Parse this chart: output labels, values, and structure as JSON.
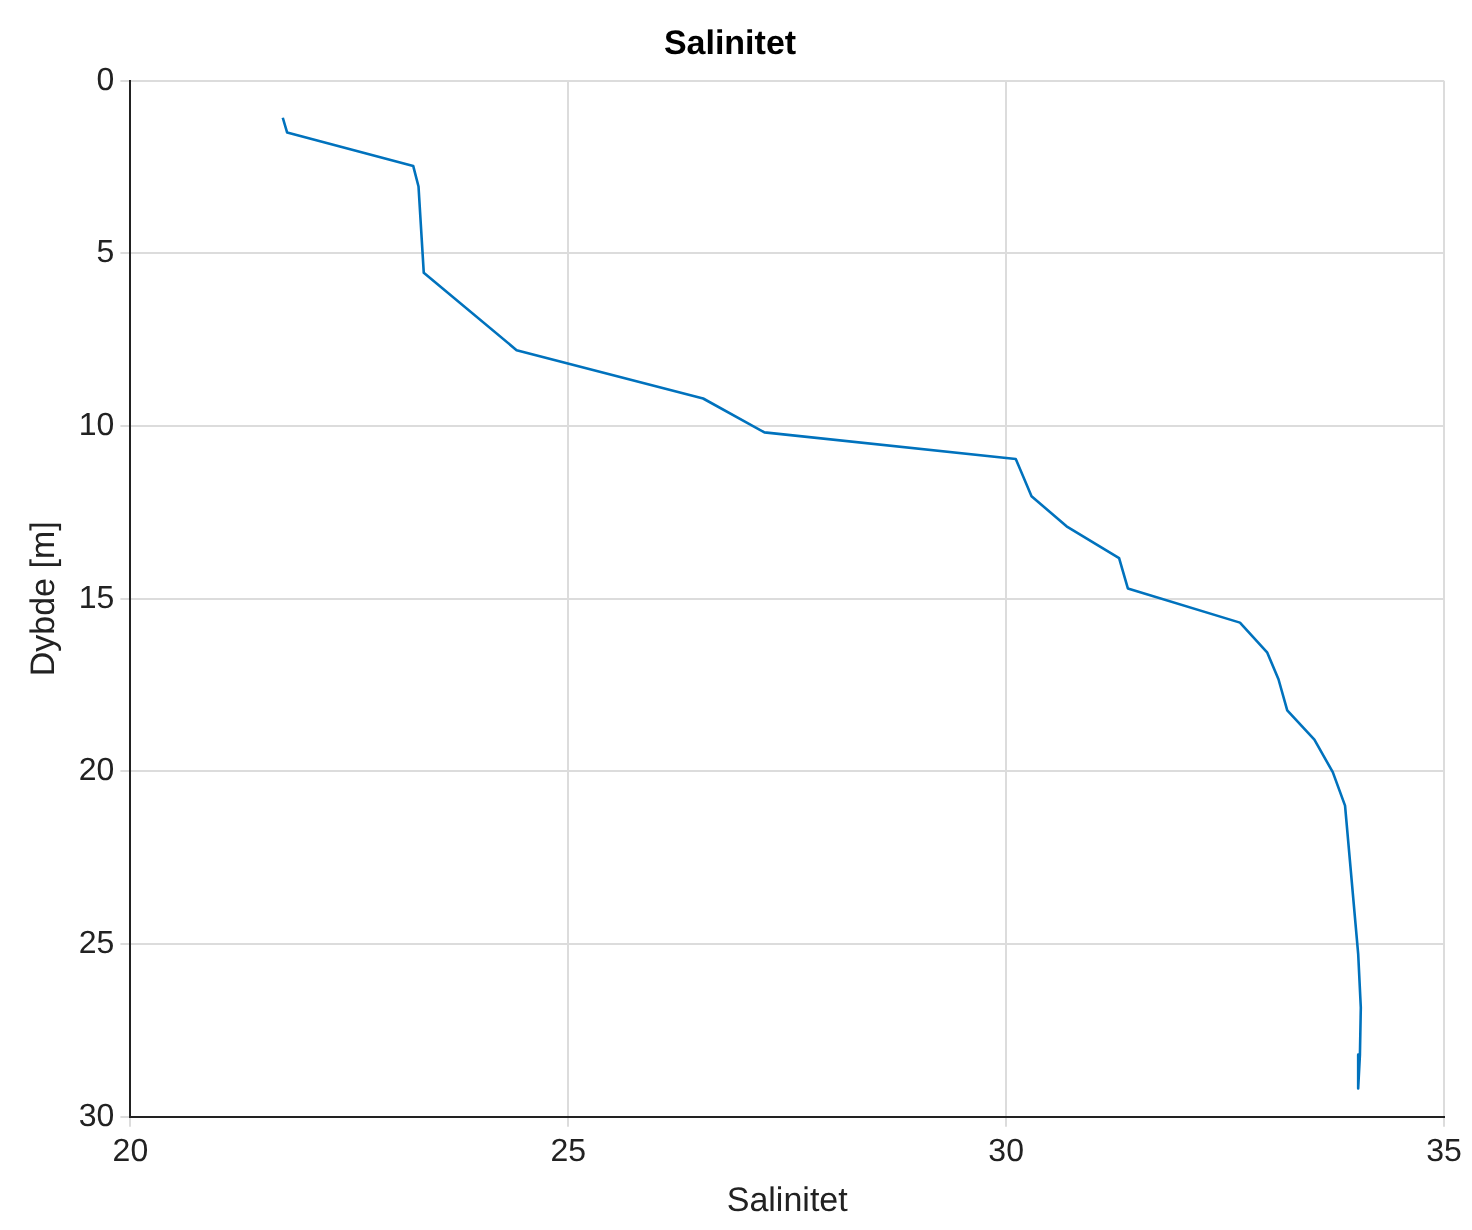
{
  "chart_data": {
    "type": "line",
    "title": "Salinitet",
    "xlabel": "Salinitet",
    "ylabel": "Dybde [m]",
    "x": [
      21.74,
      21.79,
      23.23,
      23.29,
      23.35,
      24.41,
      26.54,
      27.24,
      30.11,
      30.29,
      30.69,
      31.29,
      31.39,
      32.67,
      32.98,
      33.11,
      33.21,
      33.52,
      33.73,
      33.87,
      34.02,
      34.05,
      34.04,
      34.02
    ],
    "series": [
      {
        "color": "#0072bd",
        "values": [
          1.07,
          1.5,
          2.47,
          3.06,
          5.56,
          7.8,
          9.2,
          10.18,
          10.95,
          12.03,
          12.9,
          13.82,
          14.7,
          15.69,
          16.55,
          17.33,
          18.23,
          19.08,
          20.02,
          20.99,
          25.28,
          26.84,
          28.2,
          29.18
        ]
      }
    ],
    "xlim": [
      20,
      35
    ],
    "xticks": [
      20,
      25,
      30,
      35
    ],
    "ylim": [
      30,
      0
    ],
    "yticks": [
      0,
      5,
      10,
      15,
      20,
      25,
      30
    ],
    "grid": true,
    "legend": false,
    "marker": "none",
    "line_style": "solid"
  }
}
